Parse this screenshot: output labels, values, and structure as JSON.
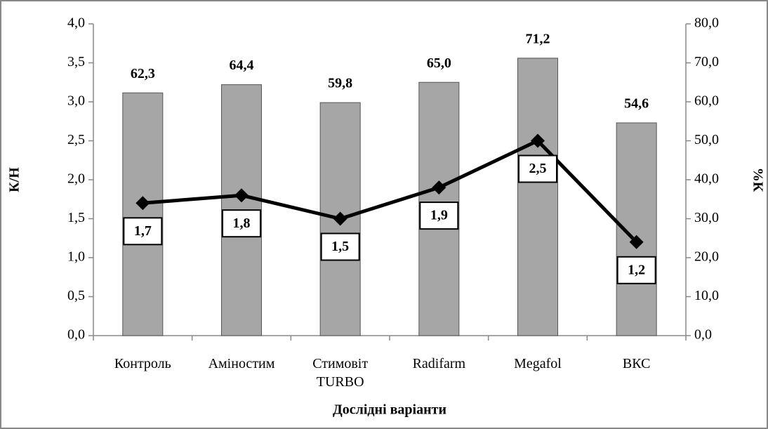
{
  "chart_data": {
    "type": "bar",
    "x_label": "Дослідні варіанти",
    "y_label": "К/Н",
    "y2_label": "%К",
    "categories": [
      "Контроль",
      "Аміностим",
      "Стимовіт\nTURBO",
      "Radifarm",
      "Megafol",
      "ВКС"
    ],
    "series": [
      {
        "type": "bar",
        "axis": "y2",
        "color": "#a6a6a6",
        "values": [
          62.3,
          64.4,
          59.8,
          65.0,
          71.2,
          54.6
        ],
        "value_labels": [
          "62,3",
          "64,4",
          "59,8",
          "65,0",
          "71,2",
          "54,6"
        ]
      },
      {
        "type": "line",
        "color": "#000000",
        "values": [
          1.7,
          1.8,
          1.5,
          1.9,
          2.5,
          1.2
        ],
        "value_labels": [
          "1,7",
          "1,8",
          "1,5",
          "1,9",
          "2,5",
          "1,2"
        ]
      }
    ],
    "ylim": [
      0,
      4
    ],
    "yticks": [
      {
        "value": 0,
        "label": "0,0"
      },
      {
        "value": 0.5,
        "label": "0,5"
      },
      {
        "value": 1,
        "label": "1,0"
      },
      {
        "value": 1.5,
        "label": "1,5"
      },
      {
        "value": 2,
        "label": "2,0"
      },
      {
        "value": 2.5,
        "label": "2,5"
      },
      {
        "value": 3,
        "label": "3,0"
      },
      {
        "value": 3.5,
        "label": "3,5"
      },
      {
        "value": 4,
        "label": "4,0"
      }
    ],
    "y2lim": [
      0,
      80
    ],
    "y2ticks": [
      {
        "value": 0,
        "label": "0,0"
      },
      {
        "value": 10,
        "label": "10,0"
      },
      {
        "value": 20,
        "label": "20,0"
      },
      {
        "value": 30,
        "label": "30,0"
      },
      {
        "value": 40,
        "label": "40,0"
      },
      {
        "value": 50,
        "label": "50,0"
      },
      {
        "value": 60,
        "label": "60,0"
      },
      {
        "value": 70,
        "label": "70,0"
      },
      {
        "value": 80,
        "label": "80,0"
      }
    ],
    "grid": false
  }
}
